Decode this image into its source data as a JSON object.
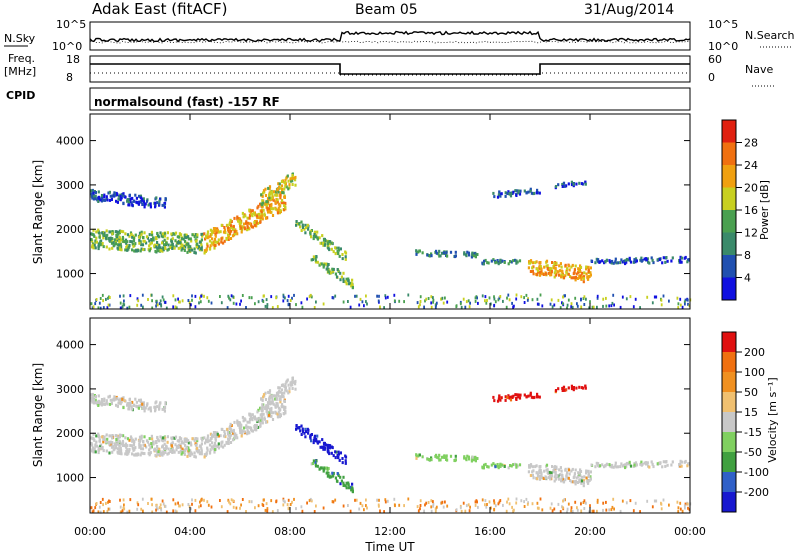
{
  "header": {
    "station": "Adak East (fitACF)",
    "beam": "Beam 05",
    "date": "31/Aug/2014"
  },
  "strips": {
    "nsky_label": "N.Sky",
    "nsky_ticks": [
      "10^5",
      "10^0"
    ],
    "nsearch_label": "N.Search",
    "nsearch_ticks": [
      "10^5",
      "10^0"
    ],
    "freq_label_1": "Freq.",
    "freq_label_2": "[MHz]",
    "freq_ticks": [
      "18",
      "8"
    ],
    "nave_label": "Nave",
    "nave_ticks": [
      "60",
      "0"
    ],
    "cpid_label": "CPID",
    "cpid_text": "normalsound (fast) -157 RF"
  },
  "colors": {
    "frame": "#000000",
    "power_scale": [
      "#1010e0",
      "#2050b0",
      "#3a8a6a",
      "#4aa050",
      "#c8d020",
      "#f0a010",
      "#f07010",
      "#e02010"
    ],
    "velocity_scale": [
      "#1818d0",
      "#3060c8",
      "#40a040",
      "#80d060",
      "#c8c8c8",
      "#f0c070",
      "#f09020",
      "#f07010",
      "#e01010"
    ]
  },
  "chart_data": [
    {
      "type": "heatmap",
      "name": "power",
      "ylabel": "Slant Range [km]",
      "yticks": [
        "4000",
        "3000",
        "2000",
        "1000"
      ],
      "ylim": [
        200,
        4600
      ],
      "colorbar_label": "Power [dB]",
      "colorbar_ticks": [
        "28",
        "24",
        "20",
        "16",
        "12",
        "8",
        "4"
      ],
      "colorbar_range": [
        0,
        30
      ]
    },
    {
      "type": "heatmap",
      "name": "velocity",
      "ylabel": "Slant Range [km]",
      "yticks": [
        "4000",
        "3000",
        "2000",
        "1000"
      ],
      "ylim": [
        200,
        4600
      ],
      "colorbar_label": "Velocity [m s⁻¹]",
      "colorbar_ticks": [
        "200",
        "100",
        "50",
        "15",
        "-15",
        "-50",
        "-100",
        "-200"
      ],
      "colorbar_range": [
        -250,
        250
      ]
    }
  ],
  "xaxis": {
    "xlabel": "Time UT",
    "xticks": [
      "00:00",
      "04:00",
      "08:00",
      "12:00",
      "16:00",
      "20:00",
      "00:00"
    ],
    "xlim_hours": [
      0,
      24
    ]
  }
}
